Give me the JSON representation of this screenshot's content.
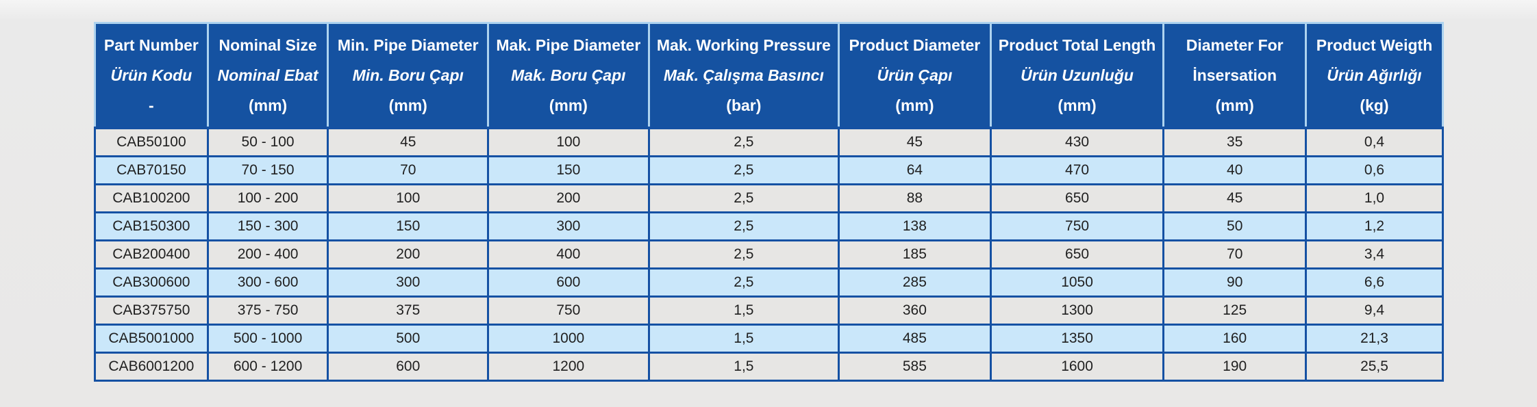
{
  "page": {
    "background_color": "#e9e8e7"
  },
  "table": {
    "colors": {
      "header_bg": "#1552a1",
      "header_text": "#ffffff",
      "header_border": "#aed3ef",
      "body_border": "#1551a3",
      "row_odd_bg": "#e7e6e4",
      "row_even_bg": "#cae7fa"
    },
    "column_widths_pct": [
      8.37,
      8.93,
      11.87,
      11.92,
      14.1,
      11.26,
      12.84,
      10.55,
      10.16
    ],
    "columns": [
      {
        "en": "Part Number",
        "tr": "Ürün Kodu",
        "tr_italic": true,
        "unit": "-"
      },
      {
        "en": "Nominal Size",
        "tr": "Nominal Ebat",
        "tr_italic": true,
        "unit": "(mm)"
      },
      {
        "en": "Min. Pipe Diameter",
        "tr": "Min. Boru Çapı",
        "tr_italic": true,
        "unit": "(mm)"
      },
      {
        "en": "Mak. Pipe Diameter",
        "tr": "Mak. Boru Çapı",
        "tr_italic": true,
        "unit": "(mm)"
      },
      {
        "en": "Mak. Working Pressure",
        "tr": "Mak. Çalışma Basıncı",
        "tr_italic": true,
        "unit": "(bar)"
      },
      {
        "en": "Product Diameter",
        "tr": "Ürün Çapı",
        "tr_italic": true,
        "unit": "(mm)"
      },
      {
        "en": "Product Total Length",
        "tr": "Ürün Uzunluğu",
        "tr_italic": true,
        "unit": "(mm)"
      },
      {
        "en": "Diameter For",
        "tr": "İnsersation",
        "tr_italic": false,
        "unit": "(mm)"
      },
      {
        "en": "Product Weigth",
        "tr": "Ürün Ağırlığı",
        "tr_italic": true,
        "unit": "(kg)"
      }
    ],
    "rows": [
      [
        "CAB50100",
        "50 - 100",
        "45",
        "100",
        "2,5",
        "45",
        "430",
        "35",
        "0,4"
      ],
      [
        "CAB70150",
        "70 - 150",
        "70",
        "150",
        "2,5",
        "64",
        "470",
        "40",
        "0,6"
      ],
      [
        "CAB100200",
        "100 - 200",
        "100",
        "200",
        "2,5",
        "88",
        "650",
        "45",
        "1,0"
      ],
      [
        "CAB150300",
        "150 - 300",
        "150",
        "300",
        "2,5",
        "138",
        "750",
        "50",
        "1,2"
      ],
      [
        "CAB200400",
        "200 - 400",
        "200",
        "400",
        "2,5",
        "185",
        "650",
        "70",
        "3,4"
      ],
      [
        "CAB300600",
        "300 - 600",
        "300",
        "600",
        "2,5",
        "285",
        "1050",
        "90",
        "6,6"
      ],
      [
        "CAB375750",
        "375 - 750",
        "375",
        "750",
        "1,5",
        "360",
        "1300",
        "125",
        "9,4"
      ],
      [
        "CAB5001000",
        "500 - 1000",
        "500",
        "1000",
        "1,5",
        "485",
        "1350",
        "160",
        "21,3"
      ],
      [
        "CAB6001200",
        "600 - 1200",
        "600",
        "1200",
        "1,5",
        "585",
        "1600",
        "190",
        "25,5"
      ]
    ]
  }
}
